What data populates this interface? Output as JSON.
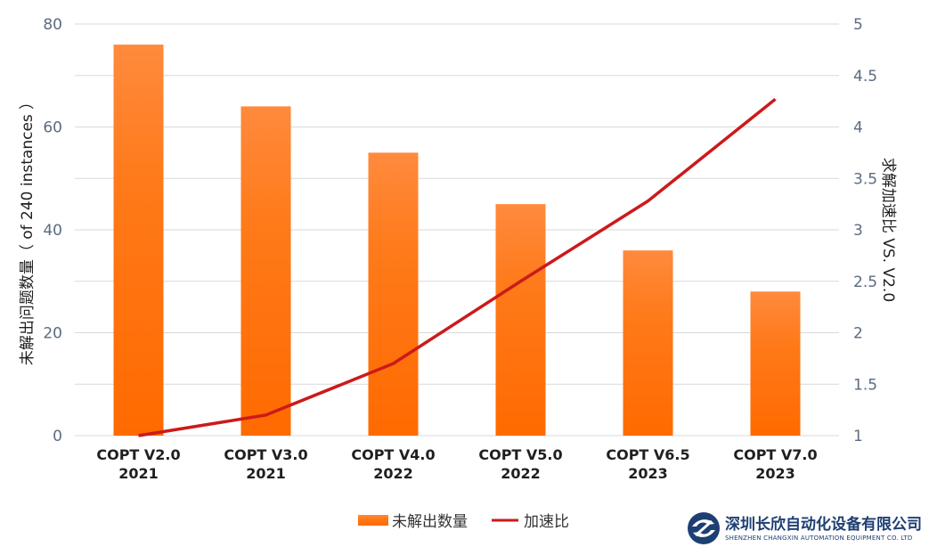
{
  "chart_data": {
    "type": "bar",
    "categories": [
      "COPT V2.0\n2021",
      "COPT V3.0\n2021",
      "COPT V4.0\n2022",
      "COPT V5.0\n2022",
      "COPT V6.5\n2023",
      "COPT V7.0\n2023"
    ],
    "series": [
      {
        "name": "未解出数量",
        "type": "bar",
        "axis": "left",
        "values": [
          76,
          64,
          55,
          45,
          36,
          28
        ],
        "color": "#ff7a1a"
      },
      {
        "name": "加速比",
        "type": "line",
        "axis": "right",
        "values": [
          1.0,
          1.2,
          1.7,
          2.5,
          3.28,
          4.27
        ],
        "color": "#cc1a1a"
      }
    ],
    "ylabel": "未解出问题数量（ of 240 instances ）",
    "y2label": "求解加速比 VS. V2.0",
    "ylim": [
      0,
      80
    ],
    "y2lim": [
      1,
      5
    ],
    "yticks": [
      "0",
      "20",
      "40",
      "60",
      "80"
    ],
    "y2ticks": [
      "1",
      "1.5",
      "2",
      "2.5",
      "3",
      "3.5",
      "4",
      "4.5",
      "5"
    ],
    "grid": true,
    "legend": "bottom-center"
  },
  "logo": {
    "company_cn": "深圳长欣自动化设备有限公司",
    "company_en": "SHENZHEN CHANGXIN AUTOMATION EQUIPMENT CO. LTD"
  },
  "colors": {
    "bar_top": "#ff8a3d",
    "bar_bottom": "#ff6a00",
    "line": "#cc1a1a",
    "grid": "#d9d9d9",
    "logo": "#1e3f73"
  }
}
